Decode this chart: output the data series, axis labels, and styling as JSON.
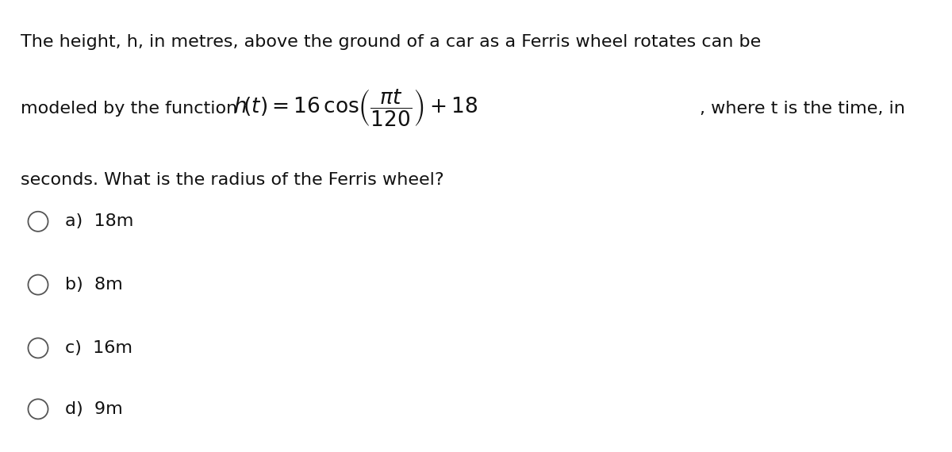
{
  "background_color": "#ffffff",
  "text_color": "#111111",
  "line1": "The height, h, in metres, above the ground of a car as a Ferris wheel rotates can be",
  "line2_prefix": "modeled by the function ",
  "line2_suffix": ", where t is the time, in",
  "line3": "seconds. What is the radius of the Ferris wheel?",
  "options": [
    "a)  18m",
    "b)  8m",
    "c)  16m",
    "d)  9m"
  ],
  "text_fontsize": 16,
  "math_fontsize": 19,
  "option_fontsize": 16,
  "figwidth": 12.0,
  "figheight": 5.7,
  "dpi": 100
}
